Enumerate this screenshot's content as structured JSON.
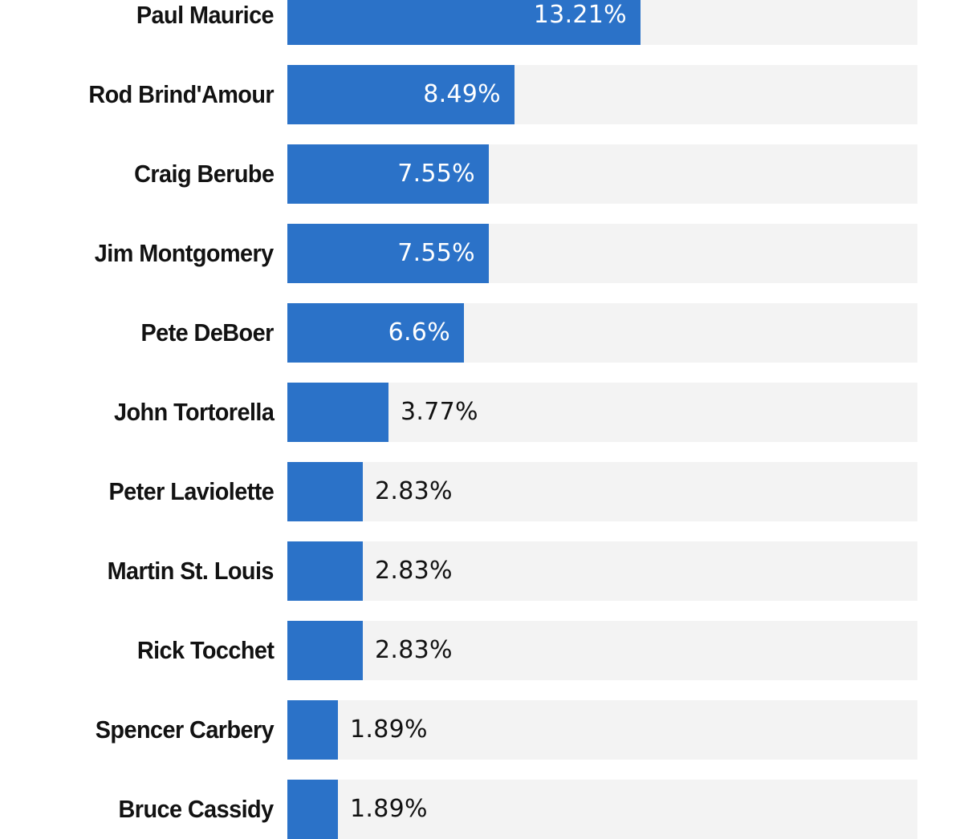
{
  "chart_data": {
    "type": "bar",
    "orientation": "horizontal",
    "title": "",
    "xlabel": "",
    "ylabel": "",
    "xlim": [
      0,
      23.57
    ],
    "grid": false,
    "legend": null,
    "categories": [
      "Paul Maurice",
      "Rod Brind'Amour",
      "Craig Berube",
      "Jim Montgomery",
      "Pete DeBoer",
      "John Tortorella",
      "Peter Laviolette",
      "Martin St. Louis",
      "Rick Tocchet",
      "Spencer Carbery",
      "Bruce Cassidy"
    ],
    "values": [
      13.21,
      8.49,
      7.55,
      7.55,
      6.6,
      3.77,
      2.83,
      2.83,
      2.83,
      1.89,
      1.89
    ],
    "value_labels": [
      "13.21%",
      "8.49%",
      "7.55%",
      "7.55%",
      "6.6%",
      "3.77%",
      "2.83%",
      "2.83%",
      "2.83%",
      "1.89%",
      "1.89%"
    ],
    "colors": {
      "bar": "#2b72c8",
      "track": "#f3f3f3",
      "label_text": "#121212",
      "inside_value_text": "#ffffff"
    }
  }
}
